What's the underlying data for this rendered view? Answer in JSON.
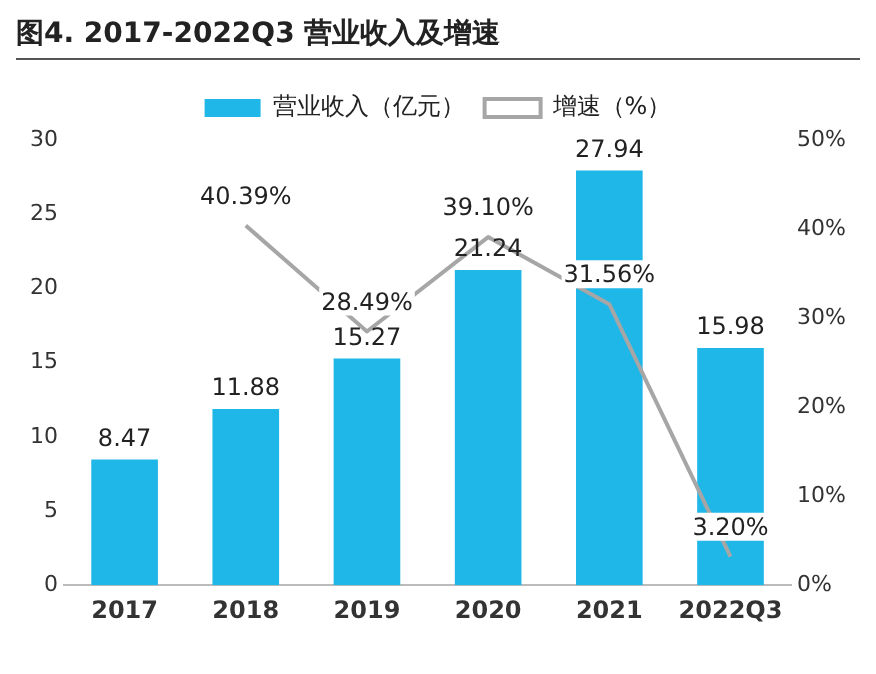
{
  "chart_data": {
    "type": "bar",
    "title": "图4. 2017-2022Q3 营业收入及增速",
    "categories": [
      "2017",
      "2018",
      "2019",
      "2020",
      "2021",
      "2022Q3"
    ],
    "series": [
      {
        "name": "营业收入（亿元）",
        "color": "#1fb6e8",
        "values": [
          8.47,
          11.88,
          15.27,
          21.24,
          27.94,
          15.98
        ],
        "value_labels": [
          "8.47",
          "11.88",
          "15.27",
          "21.24",
          "27.94",
          "15.98"
        ]
      },
      {
        "name": "增速（%）",
        "type": "line",
        "axis": "y2",
        "color": "#a6a6a6",
        "values": [
          null,
          40.39,
          28.49,
          39.1,
          31.56,
          3.2
        ],
        "value_labels": [
          null,
          "40.39%",
          "28.49%",
          "39.10%",
          "31.56%",
          "3.20%"
        ]
      }
    ],
    "ylim": [
      0,
      30
    ],
    "yticks": [
      0,
      5,
      10,
      15,
      20,
      25,
      30
    ],
    "y2lim": [
      0,
      50
    ],
    "y2ticks": [
      {
        "value": 0,
        "label": "0%"
      },
      {
        "value": 10,
        "label": "10%"
      },
      {
        "value": 20,
        "label": "20%"
      },
      {
        "value": 30,
        "label": "30%"
      },
      {
        "value": 40,
        "label": "40%"
      },
      {
        "value": 50,
        "label": "50%"
      }
    ],
    "grid": false,
    "legend": "top",
    "marker": "none"
  }
}
